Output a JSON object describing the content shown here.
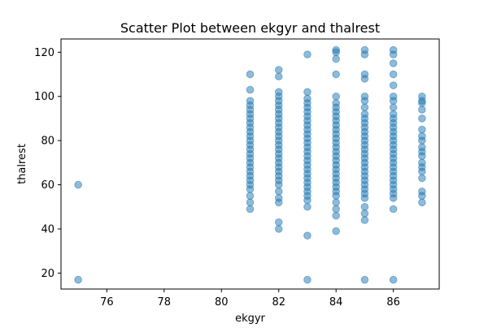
{
  "chart_data": {
    "type": "scatter",
    "title": "Scatter Plot between ekgyr and thalrest",
    "xlabel": "ekgyr",
    "ylabel": "thalrest",
    "xlim": [
      74.4,
      87.6
    ],
    "ylim": [
      12.8,
      126.0
    ],
    "x_ticks": [
      76,
      78,
      80,
      82,
      84,
      86
    ],
    "y_ticks": [
      20,
      40,
      60,
      80,
      100,
      120
    ],
    "grid": false,
    "legend": "none",
    "marker_color": "#1f77b4",
    "marker_alpha": 0.5,
    "points": [
      {
        "x": 75,
        "y": 60
      },
      {
        "x": 75,
        "y": 17
      },
      {
        "x": 81,
        "y": 49
      },
      {
        "x": 81,
        "y": 52
      },
      {
        "x": 81,
        "y": 55
      },
      {
        "x": 81,
        "y": 58
      },
      {
        "x": 81,
        "y": 60
      },
      {
        "x": 81,
        "y": 62
      },
      {
        "x": 81,
        "y": 64
      },
      {
        "x": 81,
        "y": 66
      },
      {
        "x": 81,
        "y": 68
      },
      {
        "x": 81,
        "y": 70
      },
      {
        "x": 81,
        "y": 72
      },
      {
        "x": 81,
        "y": 74
      },
      {
        "x": 81,
        "y": 76
      },
      {
        "x": 81,
        "y": 78
      },
      {
        "x": 81,
        "y": 80
      },
      {
        "x": 81,
        "y": 82
      },
      {
        "x": 81,
        "y": 84
      },
      {
        "x": 81,
        "y": 86
      },
      {
        "x": 81,
        "y": 88
      },
      {
        "x": 81,
        "y": 90
      },
      {
        "x": 81,
        "y": 92
      },
      {
        "x": 81,
        "y": 94
      },
      {
        "x": 81,
        "y": 96
      },
      {
        "x": 81,
        "y": 98
      },
      {
        "x": 81,
        "y": 103
      },
      {
        "x": 81,
        "y": 110
      },
      {
        "x": 82,
        "y": 40
      },
      {
        "x": 82,
        "y": 43
      },
      {
        "x": 82,
        "y": 52
      },
      {
        "x": 82,
        "y": 54
      },
      {
        "x": 82,
        "y": 57
      },
      {
        "x": 82,
        "y": 60
      },
      {
        "x": 82,
        "y": 62
      },
      {
        "x": 82,
        "y": 64
      },
      {
        "x": 82,
        "y": 66
      },
      {
        "x": 82,
        "y": 68
      },
      {
        "x": 82,
        "y": 70
      },
      {
        "x": 82,
        "y": 72
      },
      {
        "x": 82,
        "y": 74
      },
      {
        "x": 82,
        "y": 76
      },
      {
        "x": 82,
        "y": 78
      },
      {
        "x": 82,
        "y": 80
      },
      {
        "x": 82,
        "y": 82
      },
      {
        "x": 82,
        "y": 84
      },
      {
        "x": 82,
        "y": 86
      },
      {
        "x": 82,
        "y": 88
      },
      {
        "x": 82,
        "y": 90
      },
      {
        "x": 82,
        "y": 92
      },
      {
        "x": 82,
        "y": 94
      },
      {
        "x": 82,
        "y": 96
      },
      {
        "x": 82,
        "y": 98
      },
      {
        "x": 82,
        "y": 100
      },
      {
        "x": 82,
        "y": 102
      },
      {
        "x": 82,
        "y": 109
      },
      {
        "x": 82,
        "y": 112
      },
      {
        "x": 83,
        "y": 17
      },
      {
        "x": 83,
        "y": 37
      },
      {
        "x": 83,
        "y": 50
      },
      {
        "x": 83,
        "y": 53
      },
      {
        "x": 83,
        "y": 55
      },
      {
        "x": 83,
        "y": 57
      },
      {
        "x": 83,
        "y": 59
      },
      {
        "x": 83,
        "y": 61
      },
      {
        "x": 83,
        "y": 63
      },
      {
        "x": 83,
        "y": 65
      },
      {
        "x": 83,
        "y": 67
      },
      {
        "x": 83,
        "y": 69
      },
      {
        "x": 83,
        "y": 71
      },
      {
        "x": 83,
        "y": 73
      },
      {
        "x": 83,
        "y": 75
      },
      {
        "x": 83,
        "y": 77
      },
      {
        "x": 83,
        "y": 79
      },
      {
        "x": 83,
        "y": 81
      },
      {
        "x": 83,
        "y": 83
      },
      {
        "x": 83,
        "y": 85
      },
      {
        "x": 83,
        "y": 87
      },
      {
        "x": 83,
        "y": 89
      },
      {
        "x": 83,
        "y": 91
      },
      {
        "x": 83,
        "y": 93
      },
      {
        "x": 83,
        "y": 95
      },
      {
        "x": 83,
        "y": 97
      },
      {
        "x": 83,
        "y": 99
      },
      {
        "x": 83,
        "y": 102
      },
      {
        "x": 83,
        "y": 119
      },
      {
        "x": 84,
        "y": 39
      },
      {
        "x": 84,
        "y": 46
      },
      {
        "x": 84,
        "y": 49
      },
      {
        "x": 84,
        "y": 52
      },
      {
        "x": 84,
        "y": 55
      },
      {
        "x": 84,
        "y": 57
      },
      {
        "x": 84,
        "y": 59
      },
      {
        "x": 84,
        "y": 61
      },
      {
        "x": 84,
        "y": 63
      },
      {
        "x": 84,
        "y": 65
      },
      {
        "x": 84,
        "y": 67
      },
      {
        "x": 84,
        "y": 69
      },
      {
        "x": 84,
        "y": 71
      },
      {
        "x": 84,
        "y": 73
      },
      {
        "x": 84,
        "y": 75
      },
      {
        "x": 84,
        "y": 77
      },
      {
        "x": 84,
        "y": 79
      },
      {
        "x": 84,
        "y": 81
      },
      {
        "x": 84,
        "y": 83
      },
      {
        "x": 84,
        "y": 85
      },
      {
        "x": 84,
        "y": 87
      },
      {
        "x": 84,
        "y": 89
      },
      {
        "x": 84,
        "y": 91
      },
      {
        "x": 84,
        "y": 93
      },
      {
        "x": 84,
        "y": 95
      },
      {
        "x": 84,
        "y": 97
      },
      {
        "x": 84,
        "y": 100
      },
      {
        "x": 84,
        "y": 110
      },
      {
        "x": 84,
        "y": 117
      },
      {
        "x": 84,
        "y": 120
      },
      {
        "x": 84,
        "y": 121
      },
      {
        "x": 85,
        "y": 17
      },
      {
        "x": 85,
        "y": 44
      },
      {
        "x": 85,
        "y": 47
      },
      {
        "x": 85,
        "y": 50
      },
      {
        "x": 85,
        "y": 54
      },
      {
        "x": 85,
        "y": 56
      },
      {
        "x": 85,
        "y": 58
      },
      {
        "x": 85,
        "y": 60
      },
      {
        "x": 85,
        "y": 62
      },
      {
        "x": 85,
        "y": 64
      },
      {
        "x": 85,
        "y": 66
      },
      {
        "x": 85,
        "y": 68
      },
      {
        "x": 85,
        "y": 70
      },
      {
        "x": 85,
        "y": 72
      },
      {
        "x": 85,
        "y": 74
      },
      {
        "x": 85,
        "y": 76
      },
      {
        "x": 85,
        "y": 78
      },
      {
        "x": 85,
        "y": 80
      },
      {
        "x": 85,
        "y": 82
      },
      {
        "x": 85,
        "y": 84
      },
      {
        "x": 85,
        "y": 86
      },
      {
        "x": 85,
        "y": 88
      },
      {
        "x": 85,
        "y": 90
      },
      {
        "x": 85,
        "y": 92
      },
      {
        "x": 85,
        "y": 95
      },
      {
        "x": 85,
        "y": 98
      },
      {
        "x": 85,
        "y": 100
      },
      {
        "x": 85,
        "y": 108
      },
      {
        "x": 85,
        "y": 110
      },
      {
        "x": 85,
        "y": 119
      },
      {
        "x": 85,
        "y": 121
      },
      {
        "x": 86,
        "y": 17
      },
      {
        "x": 86,
        "y": 49
      },
      {
        "x": 86,
        "y": 54
      },
      {
        "x": 86,
        "y": 56
      },
      {
        "x": 86,
        "y": 58
      },
      {
        "x": 86,
        "y": 60
      },
      {
        "x": 86,
        "y": 62
      },
      {
        "x": 86,
        "y": 64
      },
      {
        "x": 86,
        "y": 66
      },
      {
        "x": 86,
        "y": 68
      },
      {
        "x": 86,
        "y": 70
      },
      {
        "x": 86,
        "y": 72
      },
      {
        "x": 86,
        "y": 74
      },
      {
        "x": 86,
        "y": 76
      },
      {
        "x": 86,
        "y": 78
      },
      {
        "x": 86,
        "y": 80
      },
      {
        "x": 86,
        "y": 82
      },
      {
        "x": 86,
        "y": 84
      },
      {
        "x": 86,
        "y": 86
      },
      {
        "x": 86,
        "y": 88
      },
      {
        "x": 86,
        "y": 90
      },
      {
        "x": 86,
        "y": 92
      },
      {
        "x": 86,
        "y": 95
      },
      {
        "x": 86,
        "y": 98
      },
      {
        "x": 86,
        "y": 100
      },
      {
        "x": 86,
        "y": 105
      },
      {
        "x": 86,
        "y": 110
      },
      {
        "x": 86,
        "y": 115
      },
      {
        "x": 86,
        "y": 119
      },
      {
        "x": 86,
        "y": 121
      },
      {
        "x": 87,
        "y": 52
      },
      {
        "x": 87,
        "y": 55
      },
      {
        "x": 87,
        "y": 57
      },
      {
        "x": 87,
        "y": 63
      },
      {
        "x": 87,
        "y": 66
      },
      {
        "x": 87,
        "y": 68
      },
      {
        "x": 87,
        "y": 70
      },
      {
        "x": 87,
        "y": 73
      },
      {
        "x": 87,
        "y": 75
      },
      {
        "x": 87,
        "y": 77
      },
      {
        "x": 87,
        "y": 80
      },
      {
        "x": 87,
        "y": 82
      },
      {
        "x": 87,
        "y": 85
      },
      {
        "x": 87,
        "y": 90
      },
      {
        "x": 87,
        "y": 94
      },
      {
        "x": 87,
        "y": 97
      },
      {
        "x": 87,
        "y": 98
      },
      {
        "x": 87,
        "y": 100
      }
    ]
  }
}
